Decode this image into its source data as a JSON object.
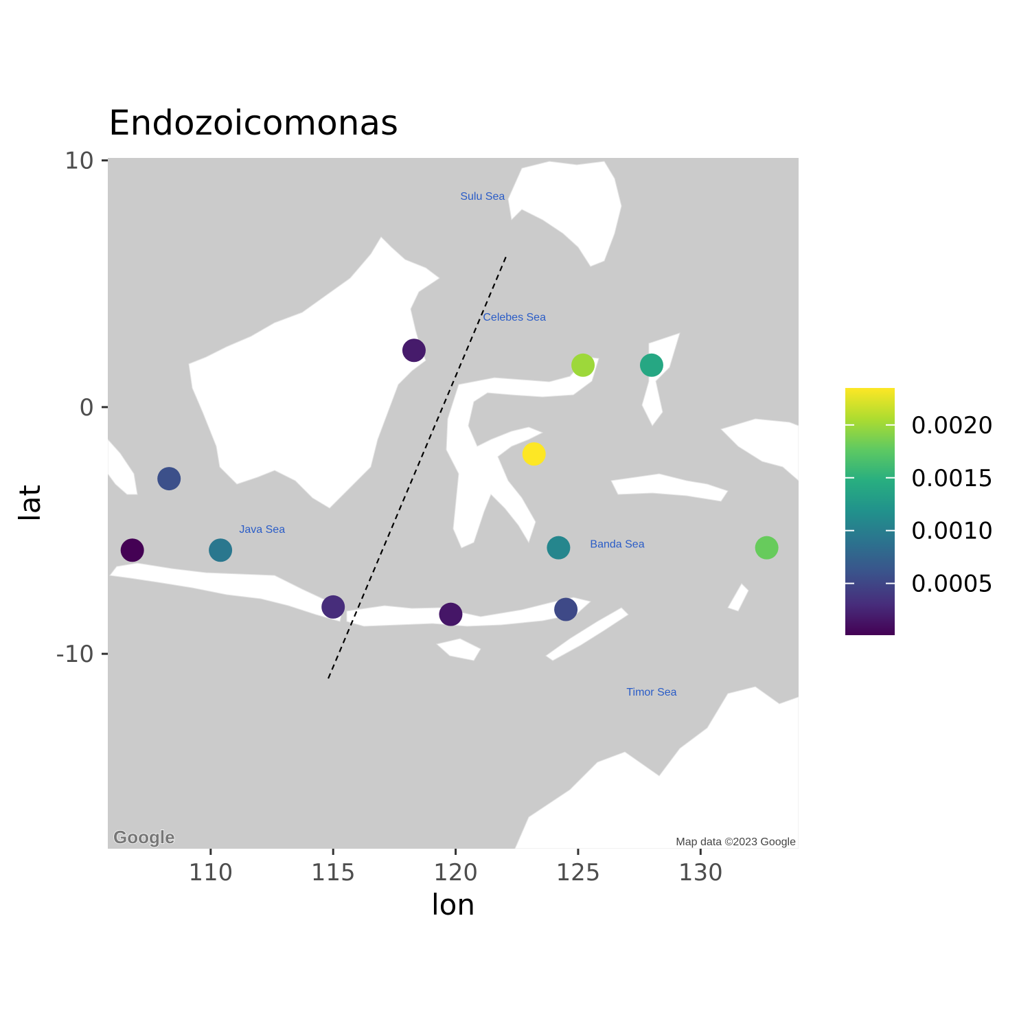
{
  "chart_data": {
    "type": "scatter",
    "title": "Endozoicomonas",
    "xlabel": "lon",
    "ylabel": "lat",
    "xlim": [
      105.8,
      134.0
    ],
    "ylim": [
      -17.9,
      10.1
    ],
    "x_ticks": [
      110,
      115,
      120,
      125,
      130
    ],
    "y_ticks": [
      10,
      0,
      -10
    ],
    "x_tick_labels": [
      "110",
      "115",
      "120",
      "125",
      "130"
    ],
    "y_tick_labels": [
      "10",
      "0",
      "-10"
    ],
    "grid": false,
    "legend_position": "right",
    "color_scale": {
      "palette": "viridis",
      "min": 1e-05,
      "max": 0.00235,
      "ticks": [
        0.0005,
        0.001,
        0.0015,
        0.002
      ],
      "tick_labels": [
        "0.0005",
        "0.0010",
        "0.0015",
        "0.0020"
      ]
    },
    "points": [
      {
        "lon": 106.8,
        "lat": -5.8,
        "value": 1e-05
      },
      {
        "lon": 108.3,
        "lat": -2.9,
        "value": 0.00058
      },
      {
        "lon": 110.4,
        "lat": -5.8,
        "value": 0.00093
      },
      {
        "lon": 115.0,
        "lat": -8.1,
        "value": 0.0003
      },
      {
        "lon": 118.3,
        "lat": 2.3,
        "value": 0.00018
      },
      {
        "lon": 119.8,
        "lat": -8.4,
        "value": 0.00015
      },
      {
        "lon": 123.2,
        "lat": -1.9,
        "value": 0.00235
      },
      {
        "lon": 124.2,
        "lat": -5.7,
        "value": 0.00108
      },
      {
        "lon": 124.5,
        "lat": -8.2,
        "value": 0.00052
      },
      {
        "lon": 125.2,
        "lat": 1.7,
        "value": 0.002
      },
      {
        "lon": 128.0,
        "lat": 1.7,
        "value": 0.0014
      },
      {
        "lon": 132.7,
        "lat": -5.7,
        "value": 0.0018
      }
    ],
    "reference_line": {
      "style": "dashed",
      "points": [
        [
          114.8,
          -11.0
        ],
        [
          122.1,
          6.2
        ]
      ]
    },
    "basemap": {
      "provider": "Google",
      "sea_labels": [
        {
          "text": "Sulu Sea",
          "lon": 121.1,
          "lat": 8.4
        },
        {
          "text": "Celebes Sea",
          "lon": 122.4,
          "lat": 3.5
        },
        {
          "text": "Java Sea",
          "lon": 112.1,
          "lat": -5.1
        },
        {
          "text": "Banda Sea",
          "lon": 126.6,
          "lat": -5.7
        },
        {
          "text": "Timor Sea",
          "lon": 128.0,
          "lat": -11.7
        }
      ],
      "credit": "Map data ©2023 Google",
      "logo": "Google"
    }
  }
}
